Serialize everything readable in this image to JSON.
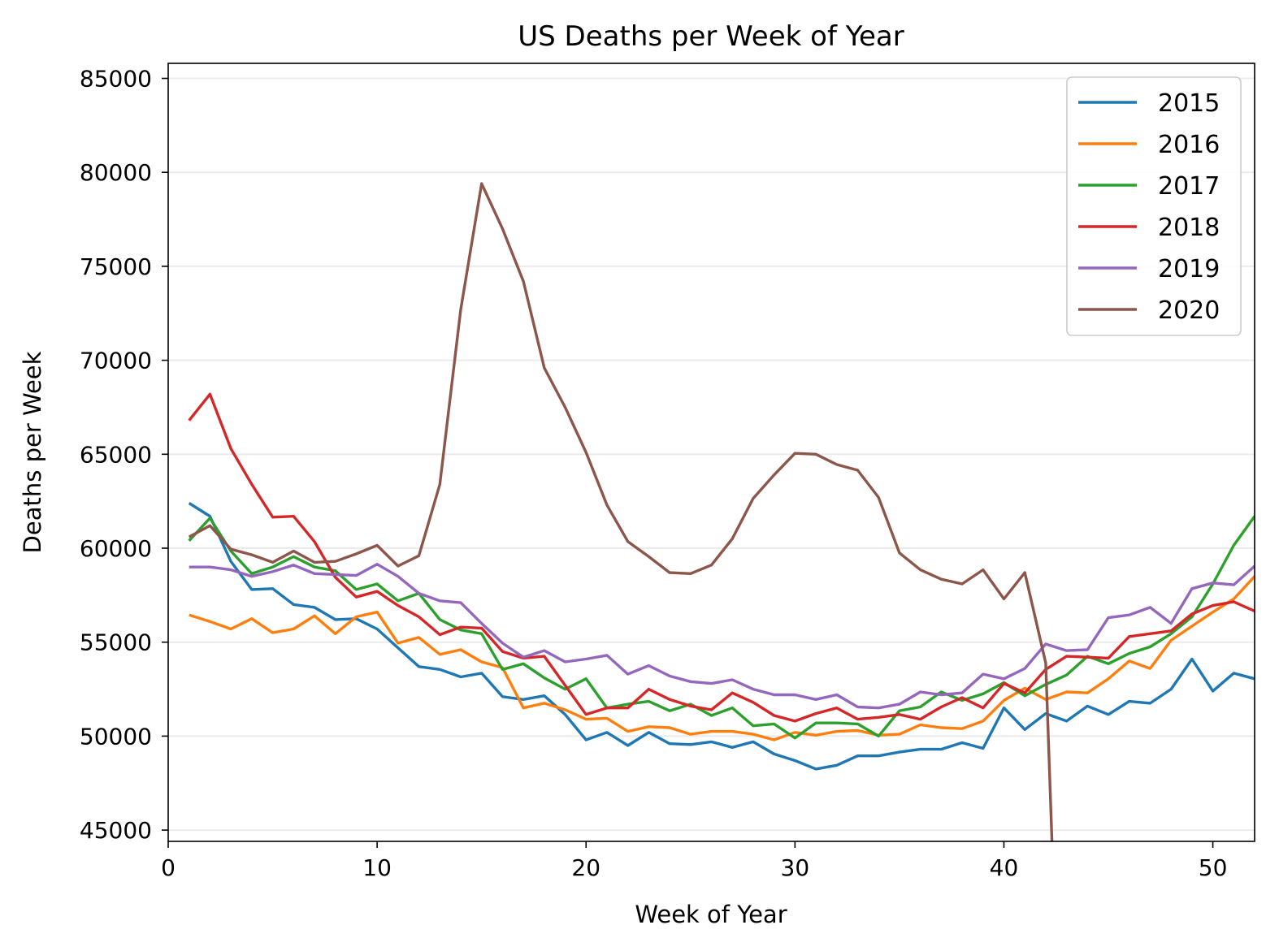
{
  "chart_data": {
    "type": "line",
    "title": "US Deaths per Week of Year",
    "xlabel": "Week of Year",
    "ylabel": "Deaths per Week",
    "xlim": [
      0,
      52
    ],
    "ylim": [
      44400,
      85800
    ],
    "x_ticks": [
      "0",
      "10",
      "20",
      "30",
      "40",
      "50"
    ],
    "y_ticks": [
      "45000",
      "50000",
      "55000",
      "60000",
      "65000",
      "70000",
      "75000",
      "80000",
      "85000"
    ],
    "grid": "horizontal",
    "legend_position": "top-right",
    "series": [
      {
        "name": "2015",
        "color": "#1f77b4",
        "x": [
          1,
          2,
          3,
          4,
          5,
          6,
          7,
          8,
          9,
          10,
          11,
          12,
          13,
          14,
          15,
          16,
          17,
          18,
          19,
          20,
          21,
          22,
          23,
          24,
          25,
          26,
          27,
          28,
          29,
          30,
          31,
          32,
          33,
          34,
          35,
          36,
          37,
          38,
          39,
          40,
          41,
          42,
          43,
          44,
          45,
          46,
          47,
          48,
          49,
          50,
          51,
          52
        ],
        "y": [
          62400,
          61700,
          59300,
          57800,
          57850,
          57000,
          56850,
          56200,
          56250,
          55700,
          54700,
          53700,
          53550,
          53150,
          53350,
          52100,
          51950,
          52150,
          51150,
          49800,
          50200,
          49500,
          50200,
          49600,
          49550,
          49700,
          49400,
          49700,
          49050,
          48700,
          48250,
          48450,
          48950,
          48950,
          49150,
          49300,
          49300,
          49650,
          49350,
          51500,
          50350,
          51200,
          50800,
          51600,
          51150,
          51850,
          51750,
          52500,
          54100,
          52400,
          53350,
          53050
        ]
      },
      {
        "name": "2016",
        "color": "#ff7f0e",
        "x": [
          1,
          2,
          3,
          4,
          5,
          6,
          7,
          8,
          9,
          10,
          11,
          12,
          13,
          14,
          15,
          16,
          17,
          18,
          19,
          20,
          21,
          22,
          23,
          24,
          25,
          26,
          27,
          28,
          29,
          30,
          31,
          32,
          33,
          34,
          35,
          36,
          37,
          38,
          39,
          40,
          41,
          42,
          43,
          44,
          45,
          46,
          47,
          48,
          49,
          50,
          51,
          52
        ],
        "y": [
          56450,
          56100,
          55700,
          56250,
          55500,
          55700,
          56400,
          55450,
          56350,
          56600,
          54950,
          55250,
          54350,
          54600,
          53950,
          53650,
          51500,
          51750,
          51400,
          50900,
          50950,
          50250,
          50500,
          50450,
          50100,
          50250,
          50250,
          50100,
          49800,
          50200,
          50050,
          50250,
          50300,
          50050,
          50100,
          50600,
          50450,
          50400,
          50800,
          51900,
          52550,
          51950,
          52350,
          52300,
          53050,
          54000,
          53600,
          55100,
          55850,
          56600,
          57300,
          58500
        ]
      },
      {
        "name": "2017",
        "color": "#2ca02c",
        "x": [
          1,
          2,
          3,
          4,
          5,
          6,
          7,
          8,
          9,
          10,
          11,
          12,
          13,
          14,
          15,
          16,
          17,
          18,
          19,
          20,
          21,
          22,
          23,
          24,
          25,
          26,
          27,
          28,
          29,
          30,
          31,
          32,
          33,
          34,
          35,
          36,
          37,
          38,
          39,
          40,
          41,
          42,
          43,
          44,
          45,
          46,
          47,
          48,
          49,
          50,
          51,
          52
        ],
        "y": [
          60400,
          61600,
          59850,
          58650,
          59000,
          59550,
          59000,
          58800,
          57800,
          58100,
          57200,
          57600,
          56200,
          55650,
          55450,
          53550,
          53850,
          53100,
          52500,
          53050,
          51500,
          51700,
          51850,
          51350,
          51700,
          51100,
          51500,
          50550,
          50650,
          49900,
          50700,
          50700,
          50650,
          50000,
          51350,
          51550,
          52350,
          51900,
          52250,
          52850,
          52150,
          52750,
          53250,
          54250,
          53850,
          54400,
          54750,
          55450,
          56350,
          58100,
          60150,
          61700
        ]
      },
      {
        "name": "2018",
        "color": "#d62728",
        "x": [
          1,
          2,
          3,
          4,
          5,
          6,
          7,
          8,
          9,
          10,
          11,
          12,
          13,
          14,
          15,
          16,
          17,
          18,
          19,
          20,
          21,
          22,
          23,
          24,
          25,
          26,
          27,
          28,
          29,
          30,
          31,
          32,
          33,
          34,
          35,
          36,
          37,
          38,
          39,
          40,
          41,
          42,
          43,
          44,
          45,
          46,
          47,
          48,
          49,
          50,
          51,
          52
        ],
        "y": [
          66800,
          68200,
          65300,
          63400,
          61650,
          61700,
          60350,
          58450,
          57400,
          57700,
          56950,
          56350,
          55400,
          55800,
          55750,
          54500,
          54150,
          54250,
          52700,
          51150,
          51500,
          51500,
          52500,
          51950,
          51600,
          51400,
          52300,
          51800,
          51100,
          50800,
          51200,
          51500,
          50900,
          51000,
          51150,
          50900,
          51550,
          52050,
          51500,
          52800,
          52300,
          53550,
          54250,
          54200,
          54150,
          55300,
          55450,
          55600,
          56500,
          56950,
          57150,
          56650
        ]
      },
      {
        "name": "2019",
        "color": "#9467bd",
        "x": [
          1,
          2,
          3,
          4,
          5,
          6,
          7,
          8,
          9,
          10,
          11,
          12,
          13,
          14,
          15,
          16,
          17,
          18,
          19,
          20,
          21,
          22,
          23,
          24,
          25,
          26,
          27,
          28,
          29,
          30,
          31,
          32,
          33,
          34,
          35,
          36,
          37,
          38,
          39,
          40,
          41,
          42,
          43,
          44,
          45,
          46,
          47,
          48,
          49,
          50,
          51,
          52
        ],
        "y": [
          59000,
          59000,
          58850,
          58500,
          58750,
          59100,
          58650,
          58600,
          58550,
          59150,
          58500,
          57600,
          57200,
          57100,
          56000,
          54950,
          54200,
          54550,
          53950,
          54100,
          54300,
          53300,
          53750,
          53200,
          52900,
          52800,
          53000,
          52500,
          52200,
          52200,
          51950,
          52200,
          51550,
          51500,
          51700,
          52350,
          52200,
          52300,
          53300,
          53050,
          53600,
          54900,
          54550,
          54600,
          56300,
          56450,
          56850,
          56000,
          57850,
          58150,
          58050,
          59050
        ]
      },
      {
        "name": "2020",
        "color": "#8c564b",
        "x": [
          1,
          2,
          3,
          4,
          5,
          6,
          7,
          8,
          9,
          10,
          11,
          12,
          13,
          14,
          15,
          16,
          17,
          18,
          19,
          20,
          21,
          22,
          23,
          24,
          25,
          26,
          27,
          28,
          29,
          30,
          31,
          32,
          33,
          34,
          35,
          36,
          37,
          38,
          39,
          40,
          41,
          42,
          42.3
        ],
        "y": [
          60600,
          61200,
          59950,
          59650,
          59250,
          59850,
          59250,
          59300,
          59700,
          60150,
          59050,
          59600,
          63400,
          72700,
          79400,
          77000,
          74200,
          69600,
          67500,
          65100,
          62300,
          60350,
          59550,
          58700,
          58650,
          59100,
          60500,
          62650,
          63900,
          65050,
          65000,
          64450,
          64150,
          62700,
          59750,
          58850,
          58350,
          58100,
          58850,
          57300,
          58700,
          53900,
          44400
        ]
      }
    ]
  }
}
